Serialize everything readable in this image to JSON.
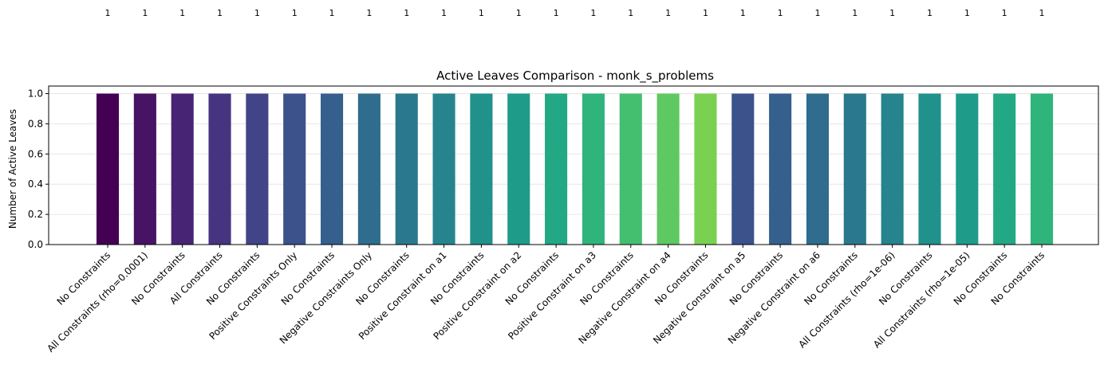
{
  "chart_data": {
    "type": "bar",
    "title": "Active Leaves Comparison - monk_s_problems",
    "xlabel": "",
    "ylabel": "Number of Active Leaves",
    "ylim": [
      0,
      1.05
    ],
    "yticks": [
      "0.0",
      "0.2",
      "0.4",
      "0.6",
      "0.8",
      "1.0"
    ],
    "grid": "y",
    "categories": [
      "No Constraints",
      "All Constraints (rho=0.0001)",
      "No Constraints",
      "All Constraints",
      "No Constraints",
      "Positive Constraints Only",
      "No Constraints",
      "Negative Constraints Only",
      "No Constraints",
      "Positive Constraint on a1",
      "No Constraints",
      "Positive Constraint on a2",
      "No Constraints",
      "Positive Constraint on a3",
      "No Constraints",
      "Negative Constraint on a4",
      "No Constraints",
      "Negative Constraint on a5",
      "No Constraints",
      "Negative Constraint on a6",
      "No Constraints",
      "All Constraints (rho=1e-06)",
      "No Constraints",
      "All Constraints (rho=1e-05)",
      "No Constraints",
      "No Constraints"
    ],
    "values": [
      1,
      1,
      1,
      1,
      1,
      1,
      1,
      1,
      1,
      1,
      1,
      1,
      1,
      1,
      1,
      1,
      1,
      1,
      1,
      1,
      1,
      1,
      1,
      1,
      1,
      1
    ],
    "value_labels": [
      "1",
      "1",
      "1",
      "1",
      "1",
      "1",
      "1",
      "1",
      "1",
      "1",
      "1",
      "1",
      "1",
      "1",
      "1",
      "1",
      "1",
      "1",
      "1",
      "1",
      "1",
      "1",
      "1",
      "1",
      "1",
      "1"
    ],
    "colors": [
      "#440154",
      "#471365",
      "#482475",
      "#463480",
      "#414487",
      "#3b528b",
      "#355f8d",
      "#2f6c8e",
      "#2a788e",
      "#25848e",
      "#21918c",
      "#1e9c89",
      "#22a884",
      "#2fb47c",
      "#44bf70",
      "#5ec962",
      "#7ad151",
      "#3b528b",
      "#355f8d",
      "#2f6c8e",
      "#2a788e",
      "#25848e",
      "#21918c",
      "#1e9c89",
      "#22a884",
      "#2fb47c"
    ]
  }
}
